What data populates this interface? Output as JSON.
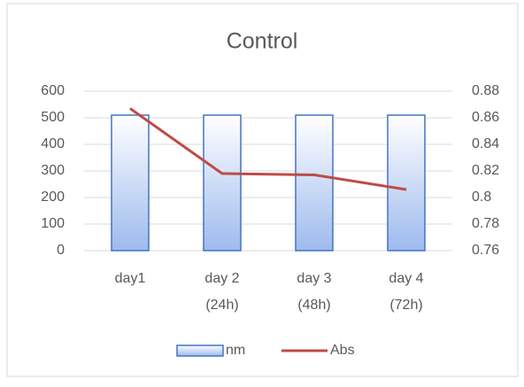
{
  "chart_data": {
    "type": "bar_line",
    "title": "Control",
    "categories": [
      "day1",
      "day 2 (24h)",
      "day 3 (48h)",
      "day 4 (72h)"
    ],
    "series": [
      {
        "name": "nm",
        "color": "#4472c4",
        "values": [
          510,
          510,
          510,
          510
        ]
      },
      {
        "name": "Abs",
        "color": "#be4b48",
        "values": [
          0.867,
          0.818,
          0.817,
          0.806
        ],
        "axis": "y2"
      }
    ],
    "ylim": [
      0,
      600
    ],
    "yticks": [
      0,
      100,
      200,
      300,
      400,
      500,
      600
    ],
    "y2lim": [
      0.76,
      0.88
    ],
    "y2ticks": [
      0.76,
      0.78,
      0.8,
      0.82,
      0.84,
      0.86,
      0.88
    ],
    "grid": true,
    "legend": "bottom"
  }
}
